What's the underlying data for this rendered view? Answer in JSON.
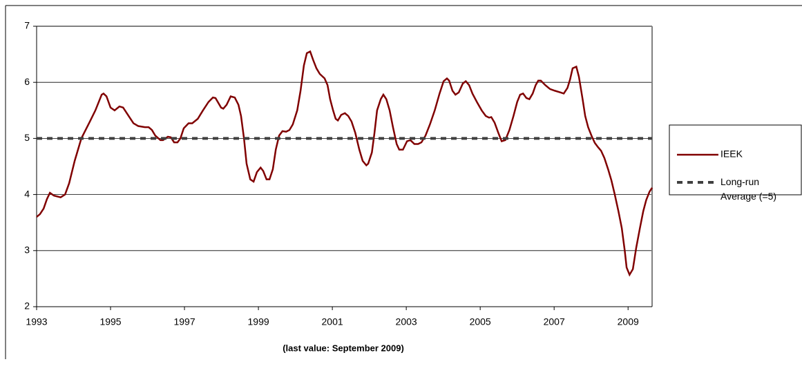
{
  "chart_data": {
    "type": "line",
    "annotation": "(last value: September 2009)",
    "xlim": [
      1993,
      2009.65
    ],
    "ylim": [
      2,
      7
    ],
    "xticks": [
      1993,
      1995,
      1997,
      1999,
      2001,
      2003,
      2005,
      2007,
      2009
    ],
    "yticks": [
      2,
      3,
      4,
      5,
      6,
      7
    ],
    "grid": true,
    "legend": "right",
    "series": [
      {
        "name": "IEEK",
        "color": "#800000",
        "style": "solid",
        "x": [
          1993.0,
          1993.09,
          1993.19,
          1993.28,
          1993.36,
          1993.47,
          1993.65,
          1993.77,
          1993.88,
          1994.03,
          1994.21,
          1994.44,
          1994.59,
          1994.76,
          1994.81,
          1994.89,
          1995.0,
          1995.11,
          1995.24,
          1995.34,
          1995.49,
          1995.62,
          1995.75,
          1995.93,
          1996.03,
          1996.12,
          1996.21,
          1996.35,
          1996.42,
          1996.55,
          1996.63,
          1996.72,
          1996.81,
          1996.89,
          1996.98,
          1997.11,
          1997.21,
          1997.36,
          1997.5,
          1997.65,
          1997.77,
          1997.84,
          1997.99,
          1998.05,
          1998.14,
          1998.25,
          1998.36,
          1998.46,
          1998.53,
          1998.61,
          1998.68,
          1998.78,
          1998.87,
          1998.96,
          1999.06,
          1999.13,
          1999.22,
          1999.3,
          1999.39,
          1999.47,
          1999.56,
          1999.65,
          1999.75,
          1999.84,
          1999.93,
          2000.05,
          2000.14,
          2000.23,
          2000.31,
          2000.4,
          2000.48,
          2000.57,
          2000.66,
          2000.79,
          2000.87,
          2000.94,
          2001.02,
          2001.09,
          2001.15,
          2001.24,
          2001.34,
          2001.43,
          2001.52,
          2001.62,
          2001.73,
          2001.82,
          2001.92,
          2001.97,
          2002.07,
          2002.14,
          2002.21,
          2002.31,
          2002.38,
          2002.46,
          2002.55,
          2002.64,
          2002.74,
          2002.81,
          2002.91,
          2003.02,
          2003.11,
          2003.22,
          2003.32,
          2003.41,
          2003.52,
          2003.64,
          2003.77,
          2003.9,
          2004.01,
          2004.1,
          2004.16,
          2004.25,
          2004.33,
          2004.42,
          2004.53,
          2004.61,
          2004.7,
          2004.79,
          2004.91,
          2005.04,
          2005.15,
          2005.24,
          2005.3,
          2005.39,
          2005.49,
          2005.58,
          2005.68,
          2005.79,
          2005.9,
          2006.0,
          2006.08,
          2006.16,
          2006.25,
          2006.33,
          2006.42,
          2006.5,
          2006.57,
          2006.64,
          2006.76,
          2006.89,
          2007.02,
          2007.17,
          2007.26,
          2007.36,
          2007.43,
          2007.5,
          2007.6,
          2007.67,
          2007.77,
          2007.84,
          2007.92,
          2008.01,
          2008.1,
          2008.18,
          2008.27,
          2008.36,
          2008.46,
          2008.55,
          2008.64,
          2008.74,
          2008.83,
          2008.91,
          2008.96,
          2009.04,
          2009.13,
          2009.22,
          2009.32,
          2009.41,
          2009.49,
          2009.58,
          2009.65
        ],
        "values": [
          3.6,
          3.65,
          3.75,
          3.92,
          4.03,
          3.98,
          3.95,
          4.0,
          4.2,
          4.6,
          5.0,
          5.3,
          5.5,
          5.78,
          5.8,
          5.75,
          5.55,
          5.5,
          5.57,
          5.55,
          5.4,
          5.27,
          5.22,
          5.2,
          5.2,
          5.15,
          5.05,
          4.97,
          4.97,
          5.03,
          5.02,
          4.93,
          4.93,
          5.0,
          5.18,
          5.27,
          5.27,
          5.35,
          5.5,
          5.65,
          5.73,
          5.72,
          5.55,
          5.53,
          5.6,
          5.75,
          5.73,
          5.6,
          5.4,
          5.0,
          4.55,
          4.27,
          4.23,
          4.4,
          4.48,
          4.42,
          4.27,
          4.27,
          4.45,
          4.8,
          5.05,
          5.13,
          5.12,
          5.15,
          5.25,
          5.5,
          5.85,
          6.3,
          6.52,
          6.55,
          6.4,
          6.25,
          6.15,
          6.07,
          5.95,
          5.7,
          5.5,
          5.35,
          5.32,
          5.42,
          5.45,
          5.4,
          5.3,
          5.1,
          4.8,
          4.6,
          4.52,
          4.55,
          4.75,
          5.1,
          5.5,
          5.7,
          5.78,
          5.7,
          5.5,
          5.2,
          4.9,
          4.8,
          4.8,
          4.95,
          4.97,
          4.9,
          4.9,
          4.93,
          5.05,
          5.25,
          5.5,
          5.8,
          6.02,
          6.07,
          6.03,
          5.85,
          5.78,
          5.82,
          5.98,
          6.02,
          5.95,
          5.8,
          5.65,
          5.5,
          5.4,
          5.37,
          5.38,
          5.28,
          5.1,
          4.95,
          4.97,
          5.15,
          5.4,
          5.65,
          5.78,
          5.8,
          5.72,
          5.7,
          5.8,
          5.95,
          6.03,
          6.03,
          5.95,
          5.88,
          5.85,
          5.82,
          5.8,
          5.9,
          6.05,
          6.25,
          6.28,
          6.1,
          5.7,
          5.4,
          5.2,
          5.05,
          4.92,
          4.85,
          4.78,
          4.65,
          4.45,
          4.25,
          4.0,
          3.7,
          3.4,
          3.0,
          2.7,
          2.57,
          2.67,
          3.05,
          3.4,
          3.7,
          3.9,
          4.05,
          4.12
        ]
      },
      {
        "name": "Long-run Average (=5)",
        "color": "#404040",
        "style": "dashed",
        "x": [
          1993,
          2009.65
        ],
        "values": [
          5,
          5
        ]
      }
    ]
  }
}
